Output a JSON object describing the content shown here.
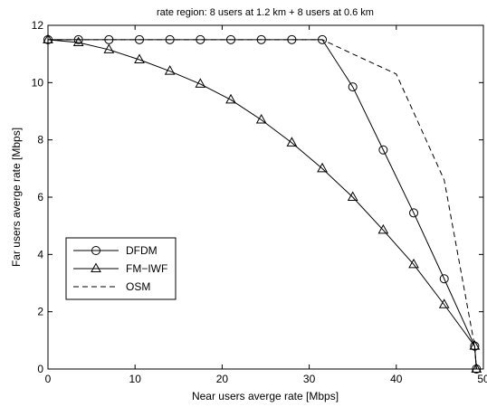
{
  "chart_data": {
    "type": "line",
    "title": "rate region: 8 users at 1.2 km + 8 users at 0.6 km",
    "xlabel": "Near users averge rate [Mbps]",
    "ylabel": "Far users averge rate [Mbps]",
    "xlim": [
      0,
      50
    ],
    "ylim": [
      0,
      12
    ],
    "xticks": [
      0,
      10,
      20,
      30,
      40,
      50
    ],
    "yticks": [
      0,
      2,
      4,
      6,
      8,
      10,
      12
    ],
    "xtick_labels": [
      "0",
      "10",
      "20",
      "30",
      "40",
      "50"
    ],
    "ytick_labels": [
      "0",
      "2",
      "4",
      "6",
      "8",
      "10",
      "12"
    ],
    "grid": false,
    "legend_position": "lower-left",
    "series": [
      {
        "name": "DFDM",
        "marker": "circle",
        "linestyle": "solid",
        "points": [
          [
            0,
            11.5
          ],
          [
            3.5,
            11.5
          ],
          [
            7,
            11.5
          ],
          [
            10.5,
            11.5
          ],
          [
            14,
            11.5
          ],
          [
            17.5,
            11.5
          ],
          [
            21,
            11.5
          ],
          [
            24.5,
            11.5
          ],
          [
            28,
            11.5
          ],
          [
            31.5,
            11.5
          ],
          [
            35,
            9.85
          ],
          [
            38.5,
            7.65
          ],
          [
            42,
            5.45
          ],
          [
            45.5,
            3.15
          ],
          [
            49,
            0.8
          ],
          [
            49.2,
            0
          ]
        ]
      },
      {
        "name": "FM−IWF",
        "marker": "triangle",
        "linestyle": "solid",
        "points": [
          [
            0,
            11.5
          ],
          [
            3.5,
            11.4
          ],
          [
            7,
            11.15
          ],
          [
            10.5,
            10.8
          ],
          [
            14,
            10.4
          ],
          [
            17.5,
            9.95
          ],
          [
            21,
            9.4
          ],
          [
            24.5,
            8.7
          ],
          [
            28,
            7.9
          ],
          [
            31.5,
            7.0
          ],
          [
            35,
            6.0
          ],
          [
            38.5,
            4.85
          ],
          [
            42,
            3.65
          ],
          [
            45.5,
            2.25
          ],
          [
            49,
            0.8
          ],
          [
            49.2,
            0
          ]
        ]
      },
      {
        "name": "OSM",
        "marker": "none",
        "linestyle": "dashed",
        "points": [
          [
            0,
            11.5
          ],
          [
            31.5,
            11.5
          ],
          [
            35,
            11.0
          ],
          [
            40,
            10.3
          ],
          [
            45.5,
            6.6
          ],
          [
            49,
            0.8
          ],
          [
            49.2,
            0
          ]
        ]
      }
    ]
  }
}
